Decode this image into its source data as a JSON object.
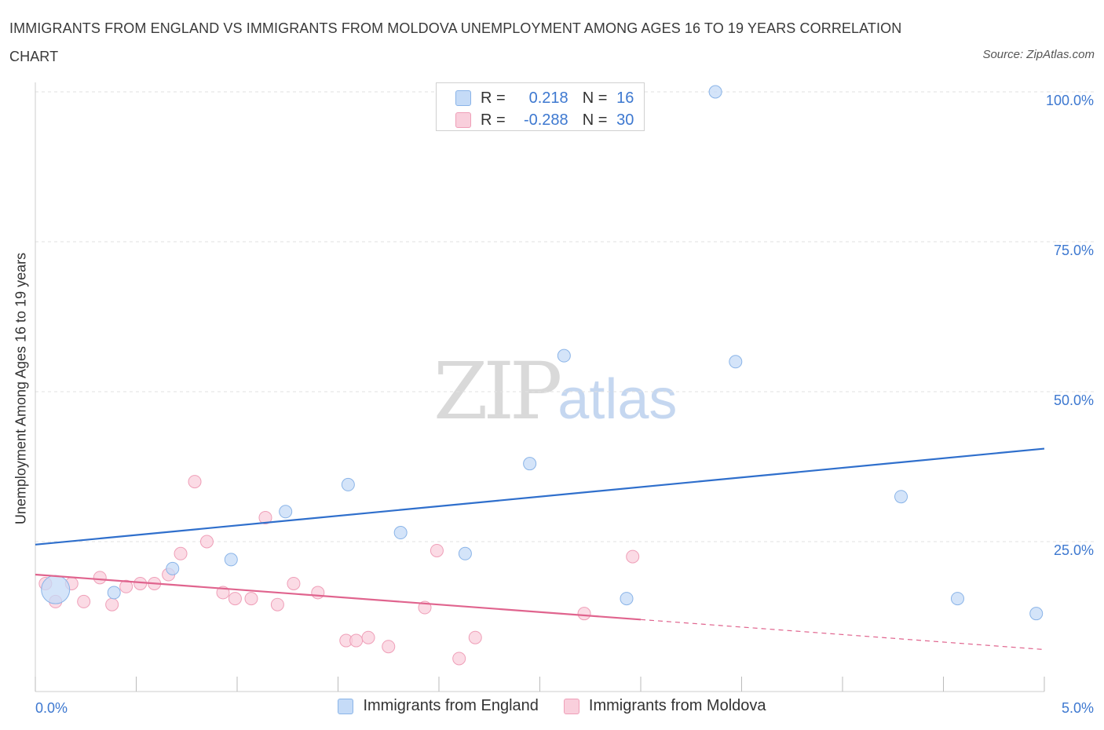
{
  "title": "IMMIGRANTS FROM ENGLAND VS IMMIGRANTS FROM MOLDOVA UNEMPLOYMENT AMONG AGES 16 TO 19 YEARS CORRELATION CHART",
  "source": "Source: ZipAtlas.com",
  "watermark": {
    "zip": "ZIP",
    "atlas": "atlas"
  },
  "legend": {
    "england": {
      "r_label": "R =",
      "r_value": "0.218",
      "n_label": "N =",
      "n_value": "16"
    },
    "moldova": {
      "r_label": "R =",
      "r_value": "-0.288",
      "n_label": "N =",
      "n_value": "30"
    }
  },
  "colors": {
    "england_fill": "#c5dbf7",
    "england_stroke": "#8ab4e8",
    "england_line": "#2f6fcc",
    "moldova_fill": "#f9cfdc",
    "moldova_stroke": "#ef9fb8",
    "moldova_line": "#e0648e",
    "axis_text": "#3d78d0",
    "grid": "#e2e2e2"
  },
  "chart_data": {
    "type": "scatter",
    "xlabel": "",
    "ylabel": "Unemployment Among Ages 16 to 19 years",
    "xlim": [
      0,
      5
    ],
    "ylim": [
      0,
      100
    ],
    "x_ticks": [
      "0.0%",
      "5.0%"
    ],
    "y_ticks": [
      {
        "value": 25,
        "label": "25.0%"
      },
      {
        "value": 50,
        "label": "50.0%"
      },
      {
        "value": 75,
        "label": "75.0%"
      },
      {
        "value": 100,
        "label": "100.0%"
      }
    ],
    "grid": true,
    "legend_position": "top-center",
    "series": [
      {
        "name": "Immigrants from England",
        "r": 0.218,
        "n": 16,
        "points": [
          {
            "x": 0.1,
            "y": 17.0,
            "big": true
          },
          {
            "x": 0.39,
            "y": 16.5
          },
          {
            "x": 0.68,
            "y": 20.5
          },
          {
            "x": 0.97,
            "y": 22.0
          },
          {
            "x": 1.24,
            "y": 30.0
          },
          {
            "x": 1.55,
            "y": 34.5
          },
          {
            "x": 1.81,
            "y": 26.5
          },
          {
            "x": 2.13,
            "y": 23.0
          },
          {
            "x": 2.45,
            "y": 38.0
          },
          {
            "x": 2.62,
            "y": 56.0
          },
          {
            "x": 2.93,
            "y": 15.5
          },
          {
            "x": 3.37,
            "y": 100.0
          },
          {
            "x": 3.47,
            "y": 55.0
          },
          {
            "x": 4.29,
            "y": 32.5
          },
          {
            "x": 4.57,
            "y": 15.5
          },
          {
            "x": 4.96,
            "y": 13.0
          }
        ],
        "trend": {
          "x": [
            0,
            5
          ],
          "y": [
            24.5,
            40.5
          ]
        }
      },
      {
        "name": "Immigrants from Moldova",
        "r": -0.288,
        "n": 30,
        "points": [
          {
            "x": 0.05,
            "y": 18.0
          },
          {
            "x": 0.1,
            "y": 15.0
          },
          {
            "x": 0.18,
            "y": 18.0
          },
          {
            "x": 0.24,
            "y": 15.0
          },
          {
            "x": 0.32,
            "y": 19.0
          },
          {
            "x": 0.38,
            "y": 14.5
          },
          {
            "x": 0.45,
            "y": 17.5
          },
          {
            "x": 0.52,
            "y": 18.0
          },
          {
            "x": 0.59,
            "y": 18.0
          },
          {
            "x": 0.66,
            "y": 19.5
          },
          {
            "x": 0.72,
            "y": 23.0
          },
          {
            "x": 0.79,
            "y": 35.0
          },
          {
            "x": 0.85,
            "y": 25.0
          },
          {
            "x": 0.93,
            "y": 16.5
          },
          {
            "x": 0.99,
            "y": 15.5
          },
          {
            "x": 1.07,
            "y": 15.5
          },
          {
            "x": 1.14,
            "y": 29.0
          },
          {
            "x": 1.2,
            "y": 14.5
          },
          {
            "x": 1.28,
            "y": 18.0
          },
          {
            "x": 1.4,
            "y": 16.5
          },
          {
            "x": 1.54,
            "y": 8.5
          },
          {
            "x": 1.59,
            "y": 8.5
          },
          {
            "x": 1.65,
            "y": 9.0
          },
          {
            "x": 1.75,
            "y": 7.5
          },
          {
            "x": 1.93,
            "y": 14.0
          },
          {
            "x": 1.99,
            "y": 23.5
          },
          {
            "x": 2.1,
            "y": 5.5
          },
          {
            "x": 2.18,
            "y": 9.0
          },
          {
            "x": 2.72,
            "y": 13.0
          },
          {
            "x": 2.96,
            "y": 22.5
          }
        ],
        "trend": {
          "x": [
            0,
            3.0
          ],
          "y": [
            19.5,
            12.0
          ]
        },
        "trend_dashed": {
          "x": [
            3.0,
            5
          ],
          "y": [
            12.0,
            7.0
          ]
        }
      }
    ]
  },
  "bottom_legend": [
    "Immigrants from England",
    "Immigrants from Moldova"
  ]
}
